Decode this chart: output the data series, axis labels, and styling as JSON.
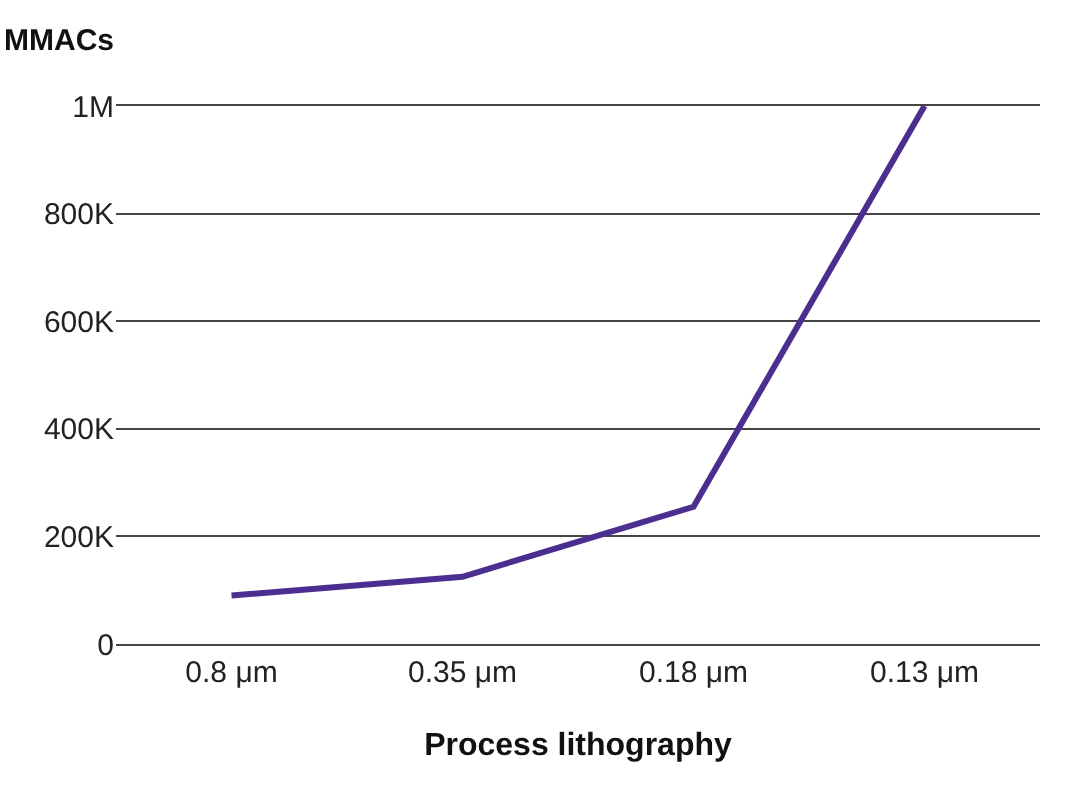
{
  "chart_data": {
    "type": "line",
    "ylabel": "MMACs",
    "xlabel": "Process lithography",
    "categories": [
      "0.8 μm",
      "0.35 μm",
      "0.18 μm",
      "0.13 μm"
    ],
    "series": [
      {
        "color": "#4b2e8f",
        "values": [
          90000,
          125000,
          255000,
          1000000
        ]
      }
    ],
    "ylim": [
      0,
      1000000
    ],
    "yticks": [
      0,
      {
        "value": 200000,
        "label": "200K"
      },
      {
        "value": 400000,
        "label": "400K"
      },
      {
        "value": 600000,
        "label": "600K"
      },
      {
        "value": 800000,
        "label": "800K"
      },
      {
        "value": 1000000,
        "label": "1M"
      }
    ],
    "grid": "y",
    "marker": "none",
    "line_style": "solid"
  }
}
